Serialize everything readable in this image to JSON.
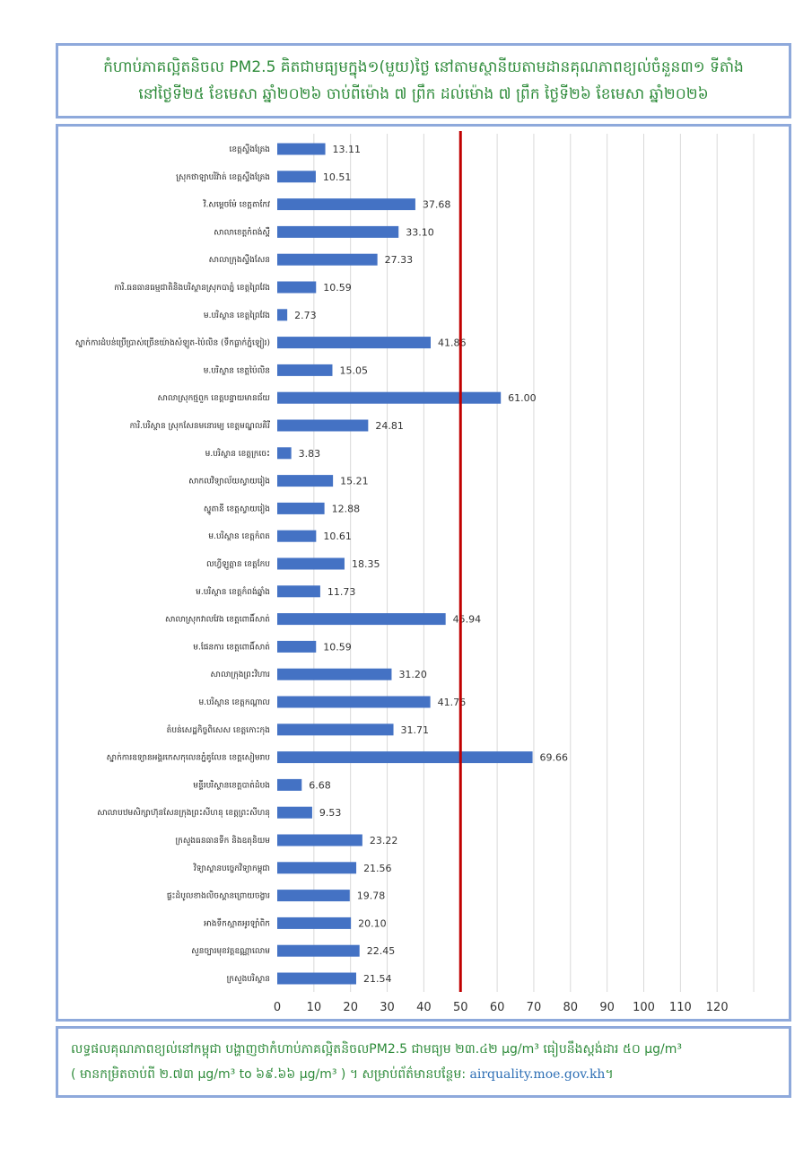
{
  "header": {
    "line1": "កំហាប់ភាគល្អិតនិចល PM2.5 គិតជាមធ្យមក្នុង១(មួយ)ថ្ងៃ នៅតាមស្ថានីយតាមដានគុណភាពខ្យល់ចំនួន៣១ ទីតាំង",
    "line2": "នៅថ្ងៃទី២៥ ខែមេសា ឆ្នាំ២០២៦ ចាប់ពីម៉ោង ៧ ព្រឹក ដល់ម៉ោង ៧ ព្រឹក ថ្ងៃទី២៦ ខែមេសា ឆ្នាំ២០២៦"
  },
  "footer": {
    "line1": "លទ្ធផលគុណភាពខ្យល់នៅកម្ពុជា បង្ហាញថាកំហាប់ភាគល្អិតនិចលPM2.5 ជាមធ្យម ២៣.៤២ µg/m³ ធៀបនឹងស្តង់ដារ ៥០ µg/m³",
    "line2_text": "( មានកម្រិតចាប់ពី ២.៧៣ µg/m³ to ៦៩.៦៦ µg/m³ ) ។ សម្រាប់ព័ត៌មានបន្ថែម: ",
    "link": "airquality.moe.gov.kh",
    "line2_end": "។"
  },
  "colors": {
    "bar": "#4472c4",
    "threshold": "#c00000",
    "grid": "#d9d9d9",
    "border": "#8ea9db",
    "title_text": "#2e8b3a"
  },
  "chart_data": {
    "type": "bar",
    "orientation": "horizontal",
    "categories": [
      "ខេត្តស្ទឹងត្រែង",
      "ស្រុកថាឡាបរិវ៉ាត់ ខេត្តស្ទឹងត្រែង",
      "វិ.សម្តេចម៉ែ ខេត្តតាកែវ",
      "សាលាខេត្តកំពង់ស្ពឺ",
      "សាលាក្រុងស្ទឹងសែន",
      "ការិ.ធនធានធម្មជាតិនិងបរិស្ថានស្រុកបាភ្នំ ខេត្តព្រៃវែង",
      "ម.បរិស្ថាន ខេត្តព្រៃវែង",
      "ស្នាក់ការដំបន់ប្រើប្រាស់ច្រើនយ៉ាងសំឡូត-ប៉ៃលិន (ទឹកធ្លាក់ភ្នំឡៀរ)",
      "ម.បរិស្ថាន ខេត្តប៉ៃលិន",
      "សាលាស្រុកថ្មពួក ខេត្តបន្ទាយមានជ័យ",
      "ការិ.បរិស្ថាន ស្រុកសែនមនោរម្យ ខេត្តមណ្ឌលគិរី",
      "ម.បរិស្ថាន ខេត្តក្រចេះ",
      "សាកលវិទ្យាល័យស្វាយរៀង",
      "ស្នូតានី ខេត្តស្វាយរៀង",
      "ម.បរិស្ថាន ខេត្តកំពត",
      "លហ្វីឡូត្តាន ខេត្តកែប",
      "ម.បរិស្ថាន ខេត្តកំពង់ឆ្នាំង",
      "សាលាស្រុកវាលវែង ខេត្តពោធិ៍សាត់",
      "ម.ផែនការ ខេត្តពោធិ៍សាត់",
      "សាលាក្រុងព្រះវិហារ",
      "ម.បរិស្ថាន ខេត្តកណ្តាល",
      "តំបន់សេដ្ឋកិច្ចពិសេស ខេត្តកោះកុង",
      "ស្នាក់ការឧទ្យានអង្គរកេសកុលេនភ្នំគូលែន ខេត្តសៀមរាប",
      "មន្ទីរបរិស្ថានខេត្តបាត់ដំបង",
      "សាលាបឋមសិក្សាហ៊ុនសែនក្រុងព្រះសីហនុ ខេត្តព្រះសីហនុ",
      "ក្រសួងធនធានទឹក និងឧតុនិយម",
      "វិទ្យាស្ថានបច្ចេកវិទ្យាកម្ពុជា",
      "ផ្ទះដំបូលខាងលិចស្ពានព្រោយចង្វារ",
      "អាងទឹកស្អាតអូរឡាំពិក",
      "សួនច្បារមុខវត្តឧណ្ណាលោម",
      "ក្រសួងបរិស្ថាន"
    ],
    "values": [
      13.11,
      10.51,
      37.68,
      33.1,
      27.33,
      10.59,
      2.73,
      41.86,
      15.05,
      61.0,
      24.81,
      3.83,
      15.21,
      12.88,
      10.61,
      18.35,
      11.73,
      45.94,
      10.59,
      31.2,
      41.76,
      31.71,
      69.66,
      6.68,
      9.53,
      23.22,
      21.56,
      19.78,
      20.1,
      22.45,
      21.54
    ],
    "value_labels": [
      "13.11",
      "10.51",
      "37.68",
      "33.10",
      "27.33",
      "10.59",
      "2.73",
      "41.86",
      "15.05",
      "61.00",
      "24.81",
      "3.83",
      "15.21",
      "12.88",
      "10.61",
      "18.35",
      "11.73",
      "45.94",
      "10.59",
      "31.20",
      "41.76",
      "31.71",
      "69.66",
      "6.68",
      "9.53",
      "23.22",
      "21.56",
      "19.78",
      "20.10",
      "22.45",
      "21.54"
    ],
    "xlim": [
      0,
      130
    ],
    "xticks": [
      0,
      10,
      20,
      30,
      40,
      50,
      60,
      70,
      80,
      90,
      100,
      110,
      120
    ],
    "threshold": 50,
    "grid": "vertical",
    "title": "",
    "xlabel": "",
    "ylabel": ""
  }
}
